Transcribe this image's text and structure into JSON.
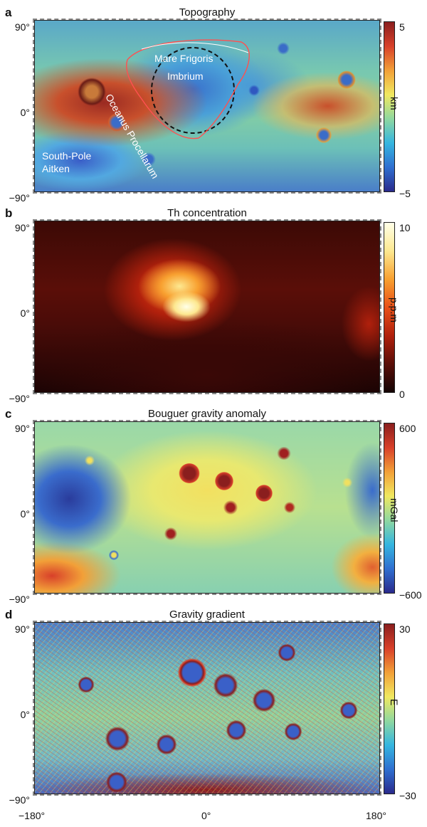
{
  "panels": [
    {
      "letter": "a",
      "title": "Topography",
      "unit": "km",
      "cbar_max": "5",
      "cbar_min": "−5",
      "annotations": {
        "mare_frigoris": "Mare Frigoris",
        "imbrium": "Imbrium",
        "oceanus": "Oceanus Procellarum",
        "spa_line1": "South-Pole",
        "spa_line2": "Aitken"
      }
    },
    {
      "letter": "b",
      "title": "Th concentration",
      "unit": "p.p.m",
      "cbar_max": "10",
      "cbar_min": "0"
    },
    {
      "letter": "c",
      "title": "Bouguer gravity anomaly",
      "unit": "mGal",
      "cbar_max": "600",
      "cbar_min": "−600"
    },
    {
      "letter": "d",
      "title": "Gravity gradient",
      "unit": "E",
      "cbar_max": "30",
      "cbar_min": "−30"
    }
  ],
  "lat_labels": {
    "north": "90°",
    "equator": "0°",
    "south": "−90°"
  },
  "lon_labels": {
    "west": "−180°",
    "center": "0°",
    "east": "180°"
  },
  "colors": {
    "jet": [
      "#2a2a8c",
      "#2f6fd0",
      "#35b6e0",
      "#8fd8a0",
      "#f0e860",
      "#f2a038",
      "#d8402a",
      "#8a1e1e"
    ],
    "hot": [
      "#140404",
      "#5a0e08",
      "#b0200c",
      "#e85018",
      "#f8a030",
      "#fde890",
      "#ffffe8"
    ]
  }
}
